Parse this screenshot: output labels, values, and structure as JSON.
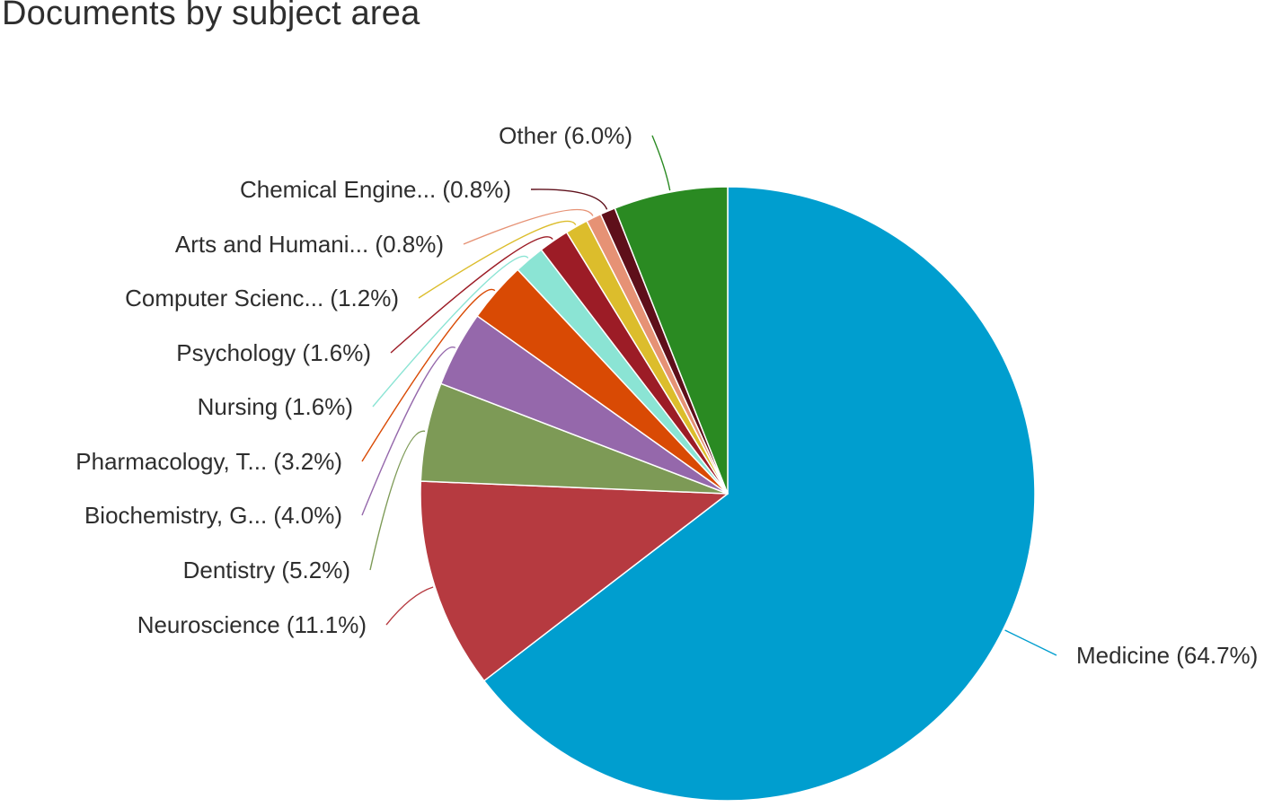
{
  "chart_data": {
    "type": "pie",
    "title": "Documents by subject area",
    "slices": [
      {
        "name": "Medicine",
        "display": "Medicine",
        "value": 64.7,
        "color": "#009ecf"
      },
      {
        "name": "Neuroscience",
        "display": "Neuroscience",
        "value": 11.1,
        "color": "#b63a40"
      },
      {
        "name": "Dentistry",
        "display": "Dentistry",
        "value": 5.2,
        "color": "#7d9a56"
      },
      {
        "name": "Biochemistry, G...",
        "display": "Biochemistry, G...",
        "value": 4.0,
        "color": "#9568ab"
      },
      {
        "name": "Pharmacology, T...",
        "display": "Pharmacology, T...",
        "value": 3.2,
        "color": "#d94a04"
      },
      {
        "name": "Nursing",
        "display": "Nursing",
        "value": 1.6,
        "color": "#8be4d4"
      },
      {
        "name": "Psychology",
        "display": "Psychology",
        "value": 1.6,
        "color": "#9c1c26"
      },
      {
        "name": "Computer Scienc...",
        "display": "Computer Scienc...",
        "value": 1.2,
        "color": "#dcbd2c"
      },
      {
        "name": "Arts and Humani...",
        "display": "Arts and Humani...",
        "value": 0.8,
        "color": "#e69275"
      },
      {
        "name": "Chemical Engine...",
        "display": "Chemical Engine...",
        "value": 0.8,
        "color": "#5e0f1a"
      },
      {
        "name": "Other",
        "display": "Other",
        "value": 6.0,
        "color": "#2a8a22"
      }
    ],
    "labels": [
      "Medicine (64.7%)",
      "Neuroscience (11.1%)",
      "Dentistry (5.2%)",
      "Biochemistry, G... (4.0%)",
      "Pharmacology, T... (3.2%)",
      "Nursing (1.6%)",
      "Psychology (1.6%)",
      "Computer Scienc... (1.2%)",
      "Arts and Humani... (0.8%)",
      "Chemical Engine... (0.8%)",
      "Other (6.0%)"
    ],
    "legend": "none",
    "start_angle": "12 o'clock, clockwise"
  }
}
